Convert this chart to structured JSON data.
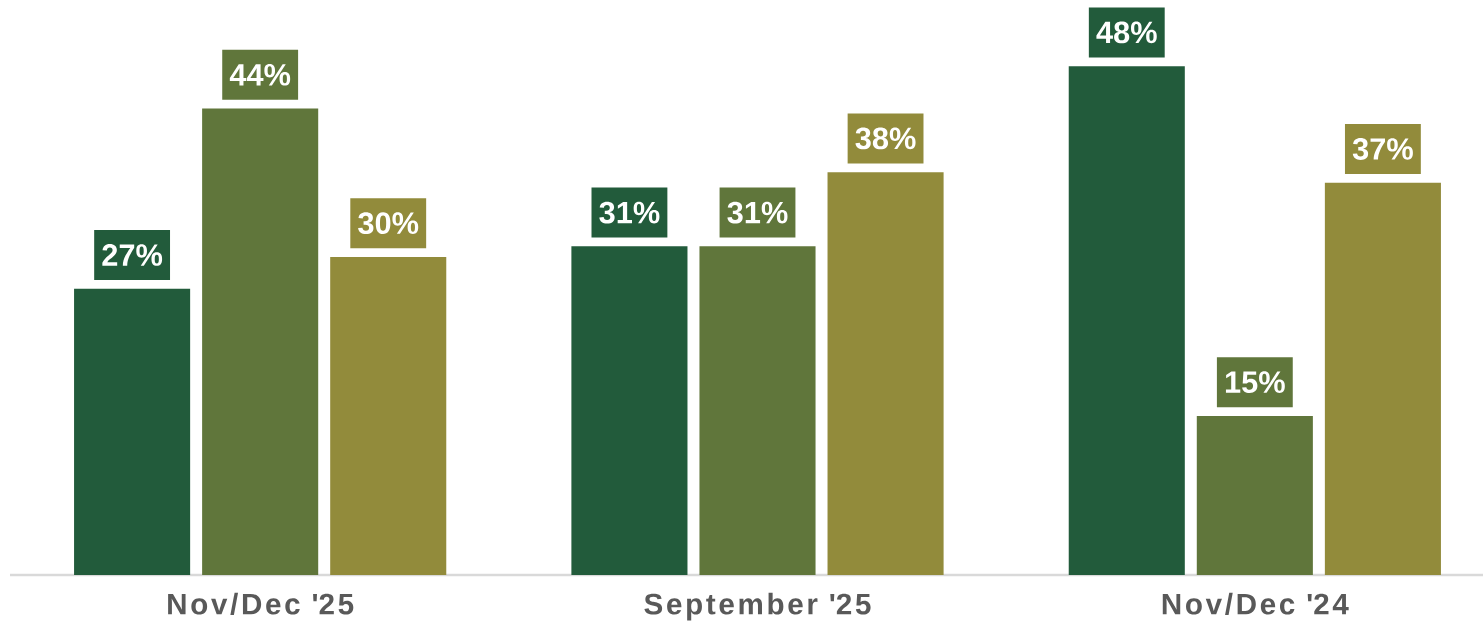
{
  "chart_data": {
    "type": "bar",
    "categories": [
      "Nov/Dec '25",
      "September '25",
      "Nov/Dec '24"
    ],
    "series": [
      {
        "color": "#225b3b",
        "values": [
          27,
          31,
          48
        ],
        "value_labels": [
          "27%",
          "31%",
          "48%"
        ]
      },
      {
        "color": "#60763b",
        "values": [
          44,
          31,
          15
        ],
        "value_labels": [
          "44%",
          "31%",
          "15%"
        ]
      },
      {
        "color": "#928b3b",
        "values": [
          30,
          38,
          37
        ],
        "value_labels": [
          "30%",
          "38%",
          "37%"
        ]
      }
    ]
  }
}
